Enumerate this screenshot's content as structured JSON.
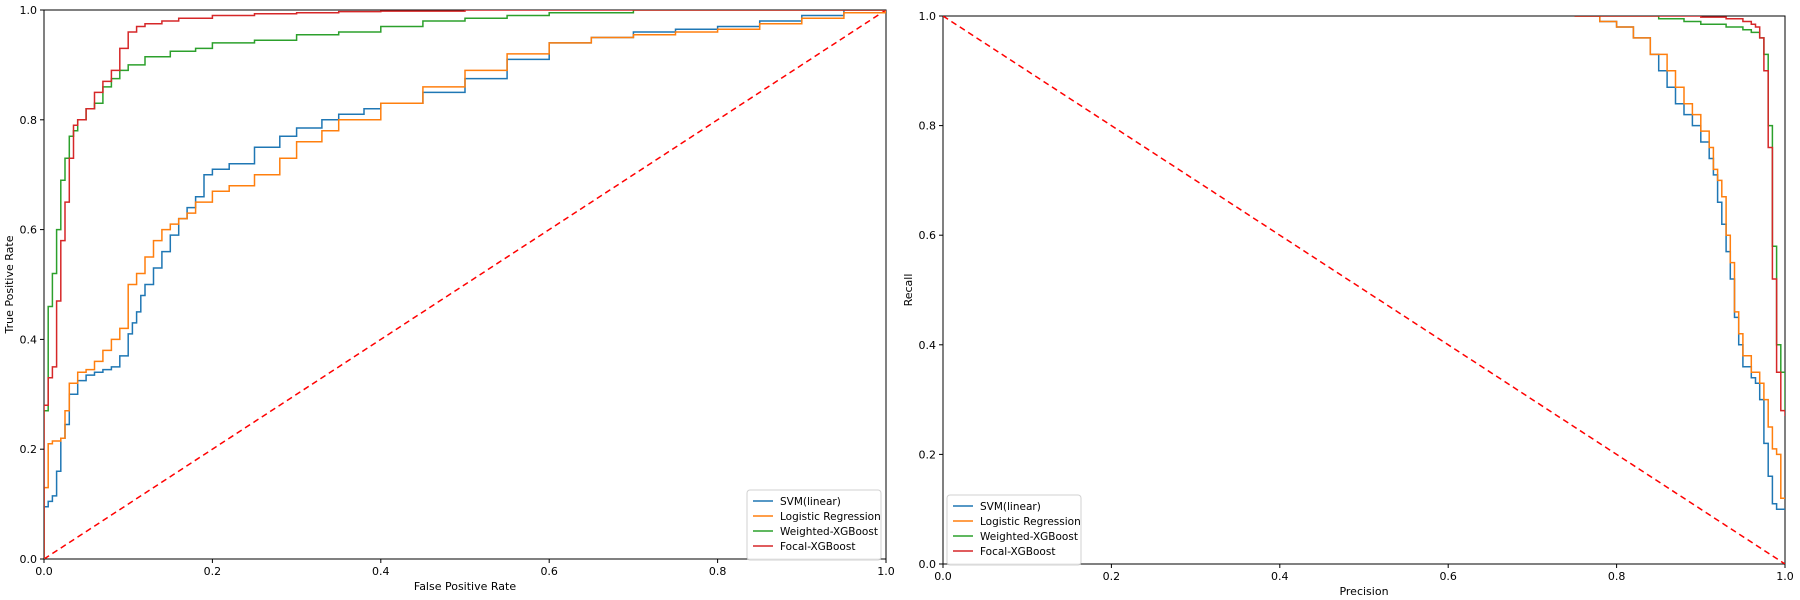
{
  "colors": {
    "SVM(linear)": "#1f77b4",
    "Logistic Regression": "#ff7f0e",
    "Weighted-XGBoost": "#2ca02c",
    "Focal-XGBoost": "#d62728",
    "reference": "#ff0000"
  },
  "chart_data": [
    {
      "type": "line",
      "xlabel": "False Positive Rate",
      "ylabel": "True Positive Rate",
      "xlim": [
        0,
        1
      ],
      "ylim": [
        0,
        1
      ],
      "xticks": [
        "0.0",
        "0.2",
        "0.4",
        "0.6",
        "0.8",
        "1.0"
      ],
      "yticks": [
        "0.0",
        "0.2",
        "0.4",
        "0.6",
        "0.8",
        "1.0"
      ],
      "grid": false,
      "legend": "lower right",
      "reference_line": {
        "x": [
          0,
          1
        ],
        "y": [
          0,
          1
        ],
        "style": "dashed"
      },
      "series": [
        {
          "name": "SVM(linear)",
          "x": [
            0,
            0,
            0.005,
            0.01,
            0.015,
            0.02,
            0.025,
            0.03,
            0.04,
            0.05,
            0.06,
            0.07,
            0.08,
            0.09,
            0.1,
            0.105,
            0.11,
            0.115,
            0.12,
            0.13,
            0.14,
            0.15,
            0.16,
            0.17,
            0.18,
            0.19,
            0.2,
            0.22,
            0.25,
            0.28,
            0.3,
            0.33,
            0.35,
            0.38,
            0.4,
            0.45,
            0.5,
            0.55,
            0.6,
            0.65,
            0.7,
            0.75,
            0.8,
            0.85,
            0.9,
            0.95,
            1.0
          ],
          "y": [
            0,
            0.095,
            0.105,
            0.115,
            0.16,
            0.22,
            0.245,
            0.3,
            0.325,
            0.335,
            0.34,
            0.345,
            0.35,
            0.37,
            0.41,
            0.43,
            0.45,
            0.48,
            0.5,
            0.53,
            0.56,
            0.59,
            0.62,
            0.64,
            0.66,
            0.7,
            0.71,
            0.72,
            0.75,
            0.77,
            0.785,
            0.8,
            0.81,
            0.82,
            0.83,
            0.85,
            0.875,
            0.91,
            0.94,
            0.95,
            0.96,
            0.965,
            0.97,
            0.98,
            0.99,
            1.0,
            1.0
          ]
        },
        {
          "name": "Logistic Regression",
          "x": [
            0,
            0,
            0.005,
            0.01,
            0.02,
            0.025,
            0.03,
            0.04,
            0.05,
            0.06,
            0.07,
            0.08,
            0.09,
            0.1,
            0.11,
            0.12,
            0.13,
            0.14,
            0.15,
            0.16,
            0.17,
            0.18,
            0.2,
            0.22,
            0.25,
            0.28,
            0.3,
            0.33,
            0.35,
            0.4,
            0.45,
            0.5,
            0.55,
            0.6,
            0.65,
            0.7,
            0.75,
            0.8,
            0.85,
            0.9,
            0.95,
            1.0
          ],
          "y": [
            0,
            0.13,
            0.21,
            0.215,
            0.22,
            0.27,
            0.32,
            0.34,
            0.345,
            0.36,
            0.38,
            0.4,
            0.42,
            0.5,
            0.52,
            0.55,
            0.58,
            0.6,
            0.61,
            0.62,
            0.63,
            0.65,
            0.67,
            0.68,
            0.7,
            0.73,
            0.76,
            0.78,
            0.8,
            0.83,
            0.86,
            0.89,
            0.92,
            0.94,
            0.95,
            0.955,
            0.96,
            0.965,
            0.975,
            0.985,
            0.995,
            1.0
          ]
        },
        {
          "name": "Weighted-XGBoost",
          "x": [
            0,
            0,
            0.005,
            0.01,
            0.015,
            0.02,
            0.025,
            0.03,
            0.035,
            0.04,
            0.05,
            0.06,
            0.07,
            0.08,
            0.09,
            0.1,
            0.12,
            0.15,
            0.18,
            0.2,
            0.25,
            0.3,
            0.35,
            0.4,
            0.45,
            0.5,
            0.55,
            0.6,
            0.7,
            0.8,
            0.9,
            1.0
          ],
          "y": [
            0,
            0.27,
            0.46,
            0.52,
            0.6,
            0.69,
            0.73,
            0.77,
            0.78,
            0.8,
            0.82,
            0.83,
            0.86,
            0.875,
            0.89,
            0.9,
            0.915,
            0.925,
            0.93,
            0.94,
            0.945,
            0.955,
            0.96,
            0.97,
            0.98,
            0.985,
            0.99,
            0.995,
            1.0,
            1.0,
            1.0,
            1.0
          ]
        },
        {
          "name": "Focal-XGBoost",
          "x": [
            0,
            0,
            0.005,
            0.01,
            0.015,
            0.02,
            0.025,
            0.03,
            0.035,
            0.04,
            0.05,
            0.06,
            0.07,
            0.08,
            0.09,
            0.1,
            0.11,
            0.12,
            0.14,
            0.16,
            0.2,
            0.25,
            0.3,
            0.35,
            0.4,
            0.5,
            0.6,
            0.7,
            0.8,
            1.0
          ],
          "y": [
            0,
            0.28,
            0.33,
            0.35,
            0.47,
            0.58,
            0.65,
            0.73,
            0.79,
            0.8,
            0.82,
            0.85,
            0.87,
            0.89,
            0.93,
            0.96,
            0.97,
            0.975,
            0.98,
            0.985,
            0.99,
            0.993,
            0.995,
            0.997,
            0.998,
            1.0,
            1.0,
            1.0,
            1.0,
            1.0
          ]
        }
      ]
    },
    {
      "type": "line",
      "xlabel": "Precision",
      "ylabel": "Recall",
      "xlim": [
        0,
        1
      ],
      "ylim": [
        0,
        1
      ],
      "xticks": [
        "0.0",
        "0.2",
        "0.4",
        "0.6",
        "0.8",
        "1.0"
      ],
      "yticks": [
        "0.0",
        "0.2",
        "0.4",
        "0.6",
        "0.8",
        "1.0"
      ],
      "grid": false,
      "legend": "lower left",
      "reference_line": {
        "x": [
          0,
          1
        ],
        "y": [
          1,
          0
        ],
        "style": "dashed"
      },
      "series": [
        {
          "name": "SVM(linear)",
          "x": [
            0.75,
            0.78,
            0.8,
            0.82,
            0.84,
            0.85,
            0.86,
            0.87,
            0.88,
            0.89,
            0.9,
            0.91,
            0.915,
            0.92,
            0.92,
            0.925,
            0.93,
            0.935,
            0.94,
            0.94,
            0.945,
            0.95,
            0.96,
            0.965,
            0.97,
            0.975,
            0.975,
            0.98,
            0.985,
            0.99,
            0.99,
            0.995,
            1.0
          ],
          "y": [
            1.0,
            0.99,
            0.98,
            0.96,
            0.93,
            0.9,
            0.87,
            0.84,
            0.82,
            0.8,
            0.77,
            0.74,
            0.71,
            0.7,
            0.66,
            0.62,
            0.57,
            0.52,
            0.48,
            0.45,
            0.4,
            0.36,
            0.34,
            0.33,
            0.3,
            0.25,
            0.22,
            0.16,
            0.11,
            0.11,
            0.1,
            0.1,
            0.1
          ]
        },
        {
          "name": "Logistic Regression",
          "x": [
            0.75,
            0.78,
            0.8,
            0.82,
            0.84,
            0.86,
            0.87,
            0.88,
            0.89,
            0.9,
            0.91,
            0.915,
            0.92,
            0.925,
            0.93,
            0.93,
            0.935,
            0.94,
            0.94,
            0.945,
            0.95,
            0.96,
            0.97,
            0.97,
            0.975,
            0.98,
            0.985,
            0.99,
            0.99,
            0.995,
            1.0
          ],
          "y": [
            1.0,
            0.99,
            0.98,
            0.96,
            0.93,
            0.9,
            0.87,
            0.84,
            0.82,
            0.79,
            0.76,
            0.72,
            0.7,
            0.67,
            0.62,
            0.6,
            0.55,
            0.51,
            0.46,
            0.42,
            0.38,
            0.35,
            0.34,
            0.33,
            0.3,
            0.25,
            0.21,
            0.21,
            0.2,
            0.12,
            0.12
          ]
        },
        {
          "name": "Weighted-XGBoost",
          "x": [
            0.75,
            0.8,
            0.85,
            0.88,
            0.9,
            0.93,
            0.95,
            0.96,
            0.97,
            0.975,
            0.98,
            0.98,
            0.985,
            0.985,
            0.99,
            0.99,
            0.995,
            1.0
          ],
          "y": [
            1.0,
            1.0,
            0.995,
            0.99,
            0.985,
            0.98,
            0.975,
            0.97,
            0.96,
            0.93,
            0.86,
            0.8,
            0.66,
            0.58,
            0.52,
            0.4,
            0.35,
            0.28
          ]
        },
        {
          "name": "Focal-XGBoost",
          "x": [
            0.75,
            0.8,
            0.85,
            0.9,
            0.93,
            0.95,
            0.96,
            0.965,
            0.97,
            0.975,
            0.98,
            0.98,
            0.985,
            0.985,
            0.99,
            0.99,
            0.995,
            1.0
          ],
          "y": [
            1.0,
            1.0,
            1.0,
            0.998,
            0.995,
            0.99,
            0.985,
            0.98,
            0.96,
            0.9,
            0.84,
            0.76,
            0.62,
            0.52,
            0.45,
            0.35,
            0.28,
            0.27
          ]
        }
      ]
    }
  ]
}
